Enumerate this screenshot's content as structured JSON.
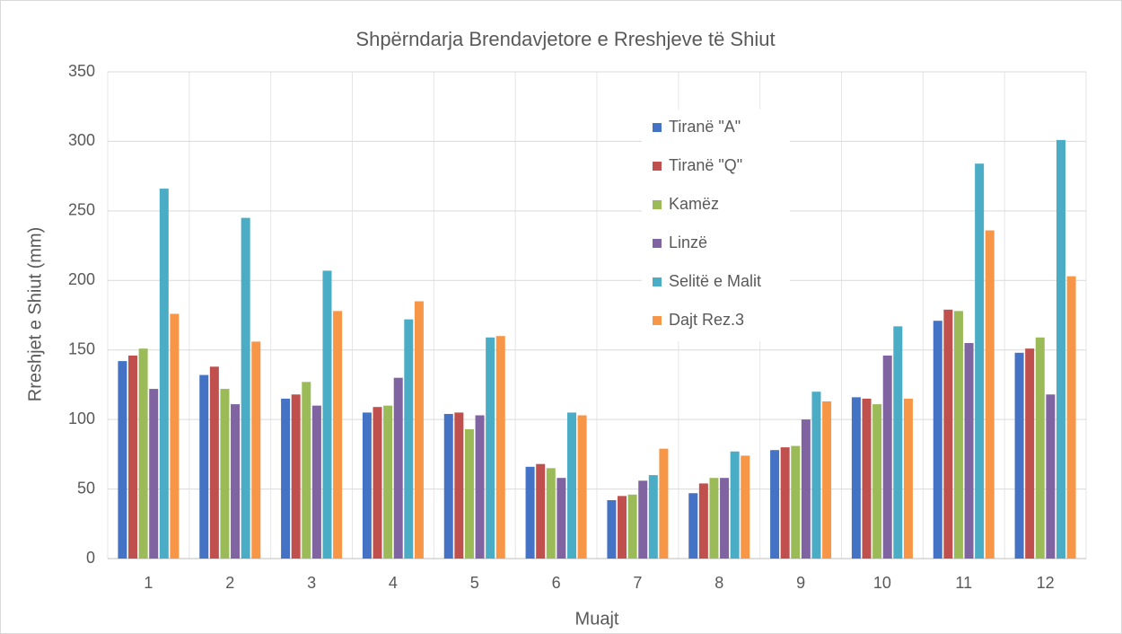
{
  "chart_data": {
    "type": "bar",
    "title": "Shpërndarja Brendavjetore e Rreshjeve të Shiut",
    "x_label": "Muajt",
    "y_label": "Rreshjet e Shiut (mm)",
    "categories": [
      "1",
      "2",
      "3",
      "4",
      "5",
      "6",
      "7",
      "8",
      "9",
      "10",
      "11",
      "12"
    ],
    "series": [
      {
        "name": "Tiranë \"A\"",
        "color": "#4472c4",
        "values": [
          142,
          132,
          115,
          105,
          104,
          66,
          42,
          47,
          78,
          116,
          171,
          148
        ]
      },
      {
        "name": "Tiranë \"Q\"",
        "color": "#c0504d",
        "values": [
          146,
          138,
          118,
          109,
          105,
          68,
          45,
          54,
          80,
          115,
          179,
          151
        ]
      },
      {
        "name": "Kamëz",
        "color": "#9bbb59",
        "values": [
          151,
          122,
          127,
          110,
          93,
          65,
          46,
          58,
          81,
          111,
          178,
          159
        ]
      },
      {
        "name": "Linzë",
        "color": "#8064a2",
        "values": [
          122,
          111,
          110,
          130,
          103,
          58,
          56,
          58,
          100,
          146,
          155,
          118
        ]
      },
      {
        "name": "Selitë e Malit",
        "color": "#4bacc6",
        "values": [
          266,
          245,
          207,
          172,
          159,
          105,
          60,
          77,
          120,
          167,
          284,
          301
        ]
      },
      {
        "name": "Dajt Rez.3",
        "color": "#f79646",
        "values": [
          176,
          156,
          178,
          185,
          160,
          103,
          79,
          74,
          113,
          115,
          236,
          203
        ]
      }
    ],
    "ylim": [
      0,
      350
    ],
    "yticks": [
      0,
      50,
      100,
      150,
      200,
      250,
      300,
      350
    ],
    "grid": true,
    "legend": "upper right"
  }
}
